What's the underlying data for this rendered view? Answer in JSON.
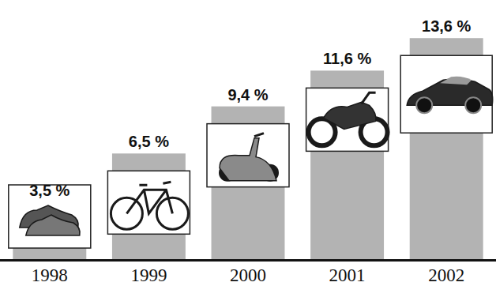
{
  "chart_data": {
    "type": "bar",
    "categories": [
      "1998",
      "1999",
      "2000",
      "2001",
      "2002"
    ],
    "values": [
      3.5,
      6.5,
      9.4,
      11.6,
      13.6
    ],
    "value_labels": [
      "3,5 %",
      "6,5 %",
      "9,4 %",
      "11,6 %",
      "13,6 %"
    ],
    "color": "#b3b3b3",
    "ylim": [
      0,
      14
    ],
    "data_labels": true,
    "tick_labels": "x",
    "grid": false
  }
}
